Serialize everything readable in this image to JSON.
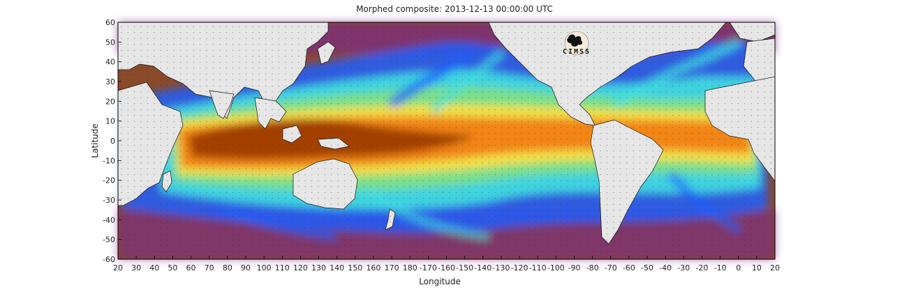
{
  "title": "Morphed composite: 2013-12-13 00:00:00 UTC",
  "xlabel": "Longitude",
  "ylabel": "Latitude",
  "logo_text": "CIMSS",
  "x_ticks": [
    "20",
    "30",
    "40",
    "50",
    "60",
    "70",
    "80",
    "90",
    "100",
    "110",
    "120",
    "130",
    "140",
    "150",
    "160",
    "170",
    "180",
    "-170",
    "-160",
    "-150",
    "-140",
    "-130",
    "-120",
    "-110",
    "-100",
    "-90",
    "-80",
    "-70",
    "-60",
    "-50",
    "-40",
    "-30",
    "-20",
    "-10",
    "0",
    "10",
    "20"
  ],
  "y_ticks": [
    "60",
    "50",
    "40",
    "30",
    "20",
    "10",
    "0",
    "-10",
    "-20",
    "-30",
    "-40",
    "-50",
    "-60"
  ],
  "colors": {
    "land": "#e6e6e6",
    "dry": "#8a4a2a",
    "purple": "#7a2a8a",
    "blue": "#1e5fff",
    "cyan": "#40e0e0",
    "green": "#7fe080",
    "yellow": "#ffe040",
    "orange": "#f08010",
    "wet": "#9a3a05"
  }
}
